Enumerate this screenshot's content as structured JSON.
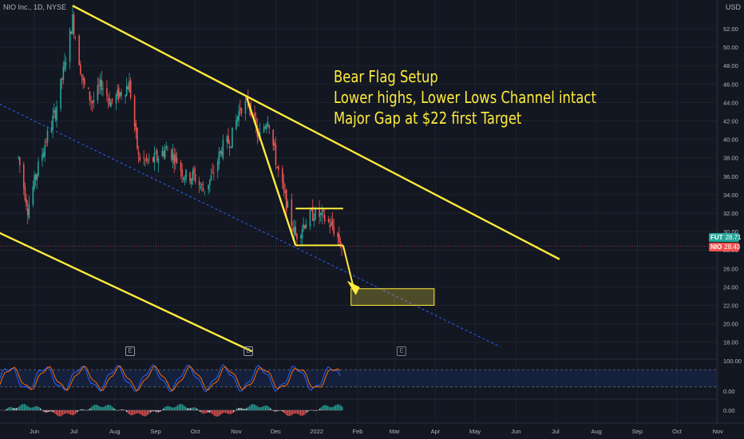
{
  "header": {
    "symbol_label": "NIO Inc., 1D, NYSE",
    "currency": "USD"
  },
  "annotation": {
    "line1": "Bear Flag Setup",
    "line2": "Lower highs, Lower Lows Channel intact",
    "line3": "Major Gap at $22 first Target"
  },
  "price_tags": {
    "futures": {
      "name": "FUT",
      "value": "28.71",
      "color": "#26a69a"
    },
    "nio": {
      "name": "NIO",
      "value": "28.43",
      "color": "#ef5350"
    }
  },
  "earnings_markers": [
    "E",
    "E",
    "E"
  ],
  "chart_data": {
    "type": "candlestick",
    "symbol": "NIO Inc.",
    "interval": "1D",
    "exchange": "NYSE",
    "currency": "USD",
    "x_tick_labels": [
      "Jun",
      "Jul",
      "Aug",
      "Sep",
      "Oct",
      "Nov",
      "Dec",
      "2022",
      "Feb",
      "Mar",
      "Apr",
      "May",
      "Jun",
      "Jul",
      "Aug",
      "Sep",
      "Oct",
      "Nov"
    ],
    "y_tick_labels": [
      "52.00",
      "50.00",
      "48.00",
      "46.00",
      "44.00",
      "42.00",
      "40.00",
      "38.00",
      "36.00",
      "34.00",
      "32.00",
      "30.00",
      "28.00",
      "26.00",
      "24.00",
      "22.00",
      "20.00",
      "18.00"
    ],
    "ylim": [
      16.8,
      54.0
    ],
    "last_price": 28.43,
    "close_path": [
      {
        "date": "2021-05-20",
        "price": 38.0
      },
      {
        "date": "2021-05-27",
        "price": 32.5
      },
      {
        "date": "2021-06-03",
        "price": 36.5
      },
      {
        "date": "2021-06-10",
        "price": 40.0
      },
      {
        "date": "2021-06-17",
        "price": 43.0
      },
      {
        "date": "2021-06-24",
        "price": 48.0
      },
      {
        "date": "2021-06-30",
        "price": 53.0
      },
      {
        "date": "2021-07-08",
        "price": 46.0
      },
      {
        "date": "2021-07-15",
        "price": 44.0
      },
      {
        "date": "2021-07-22",
        "price": 46.0
      },
      {
        "date": "2021-07-29",
        "price": 44.0
      },
      {
        "date": "2021-08-05",
        "price": 45.0
      },
      {
        "date": "2021-08-12",
        "price": 46.0
      },
      {
        "date": "2021-08-19",
        "price": 38.0
      },
      {
        "date": "2021-08-26",
        "price": 37.5
      },
      {
        "date": "2021-09-02",
        "price": 38.0
      },
      {
        "date": "2021-09-09",
        "price": 39.0
      },
      {
        "date": "2021-09-16",
        "price": 38.0
      },
      {
        "date": "2021-09-23",
        "price": 36.0
      },
      {
        "date": "2021-09-30",
        "price": 36.0
      },
      {
        "date": "2021-10-07",
        "price": 34.5
      },
      {
        "date": "2021-10-14",
        "price": 36.0
      },
      {
        "date": "2021-10-21",
        "price": 39.0
      },
      {
        "date": "2021-10-28",
        "price": 40.0
      },
      {
        "date": "2021-11-04",
        "price": 43.5
      },
      {
        "date": "2021-11-11",
        "price": 44.0
      },
      {
        "date": "2021-11-18",
        "price": 40.0
      },
      {
        "date": "2021-11-25",
        "price": 42.5
      },
      {
        "date": "2021-12-02",
        "price": 37.0
      },
      {
        "date": "2021-12-09",
        "price": 33.0
      },
      {
        "date": "2021-12-16",
        "price": 29.5
      },
      {
        "date": "2021-12-23",
        "price": 31.0
      },
      {
        "date": "2021-12-30",
        "price": 32.0
      },
      {
        "date": "2022-01-06",
        "price": 31.5
      },
      {
        "date": "2022-01-13",
        "price": 30.5
      },
      {
        "date": "2022-01-20",
        "price": 28.43
      }
    ],
    "trendlines": [
      {
        "name": "upper channel",
        "from": {
          "date": "2021-06-30",
          "price": 54.5
        },
        "to": {
          "date": "2022-07-04",
          "price": 27.0
        }
      },
      {
        "name": "lower channel",
        "from": {
          "date": "2021-04-26",
          "price": 30.5
        },
        "to": {
          "date": "2021-11-13",
          "price": 17.0
        }
      },
      {
        "name": "mid channel (dashed)",
        "from": {
          "date": "2021-04-26",
          "price": 44.5
        },
        "to": {
          "date": "2022-05-20",
          "price": 17.5
        }
      },
      {
        "name": "flagpole",
        "from": {
          "date": "2021-11-09",
          "price": 44.5
        },
        "to": {
          "date": "2021-12-16",
          "price": 28.5
        }
      }
    ],
    "flag": {
      "start": "2021-12-16",
      "end": "2022-01-21",
      "top": 32.5,
      "bottom": 28.5
    },
    "target_zone": {
      "start": "2022-01-27",
      "end": "2022-03-31",
      "top": 23.8,
      "bottom": 22.0
    },
    "indicators": [
      {
        "name": "stochastic",
        "y_tick_labels": [
          "100.00",
          "0.00"
        ],
        "levels": [
          80,
          20
        ]
      },
      {
        "name": "histogram",
        "y_tick_labels": [
          "0.00"
        ]
      }
    ],
    "colors": {
      "background": "#131722",
      "up_candle": "#26a69a",
      "down_candle": "#ef5350",
      "drawings": "#ffeb3b",
      "dashed_line": "#2962ff"
    }
  }
}
